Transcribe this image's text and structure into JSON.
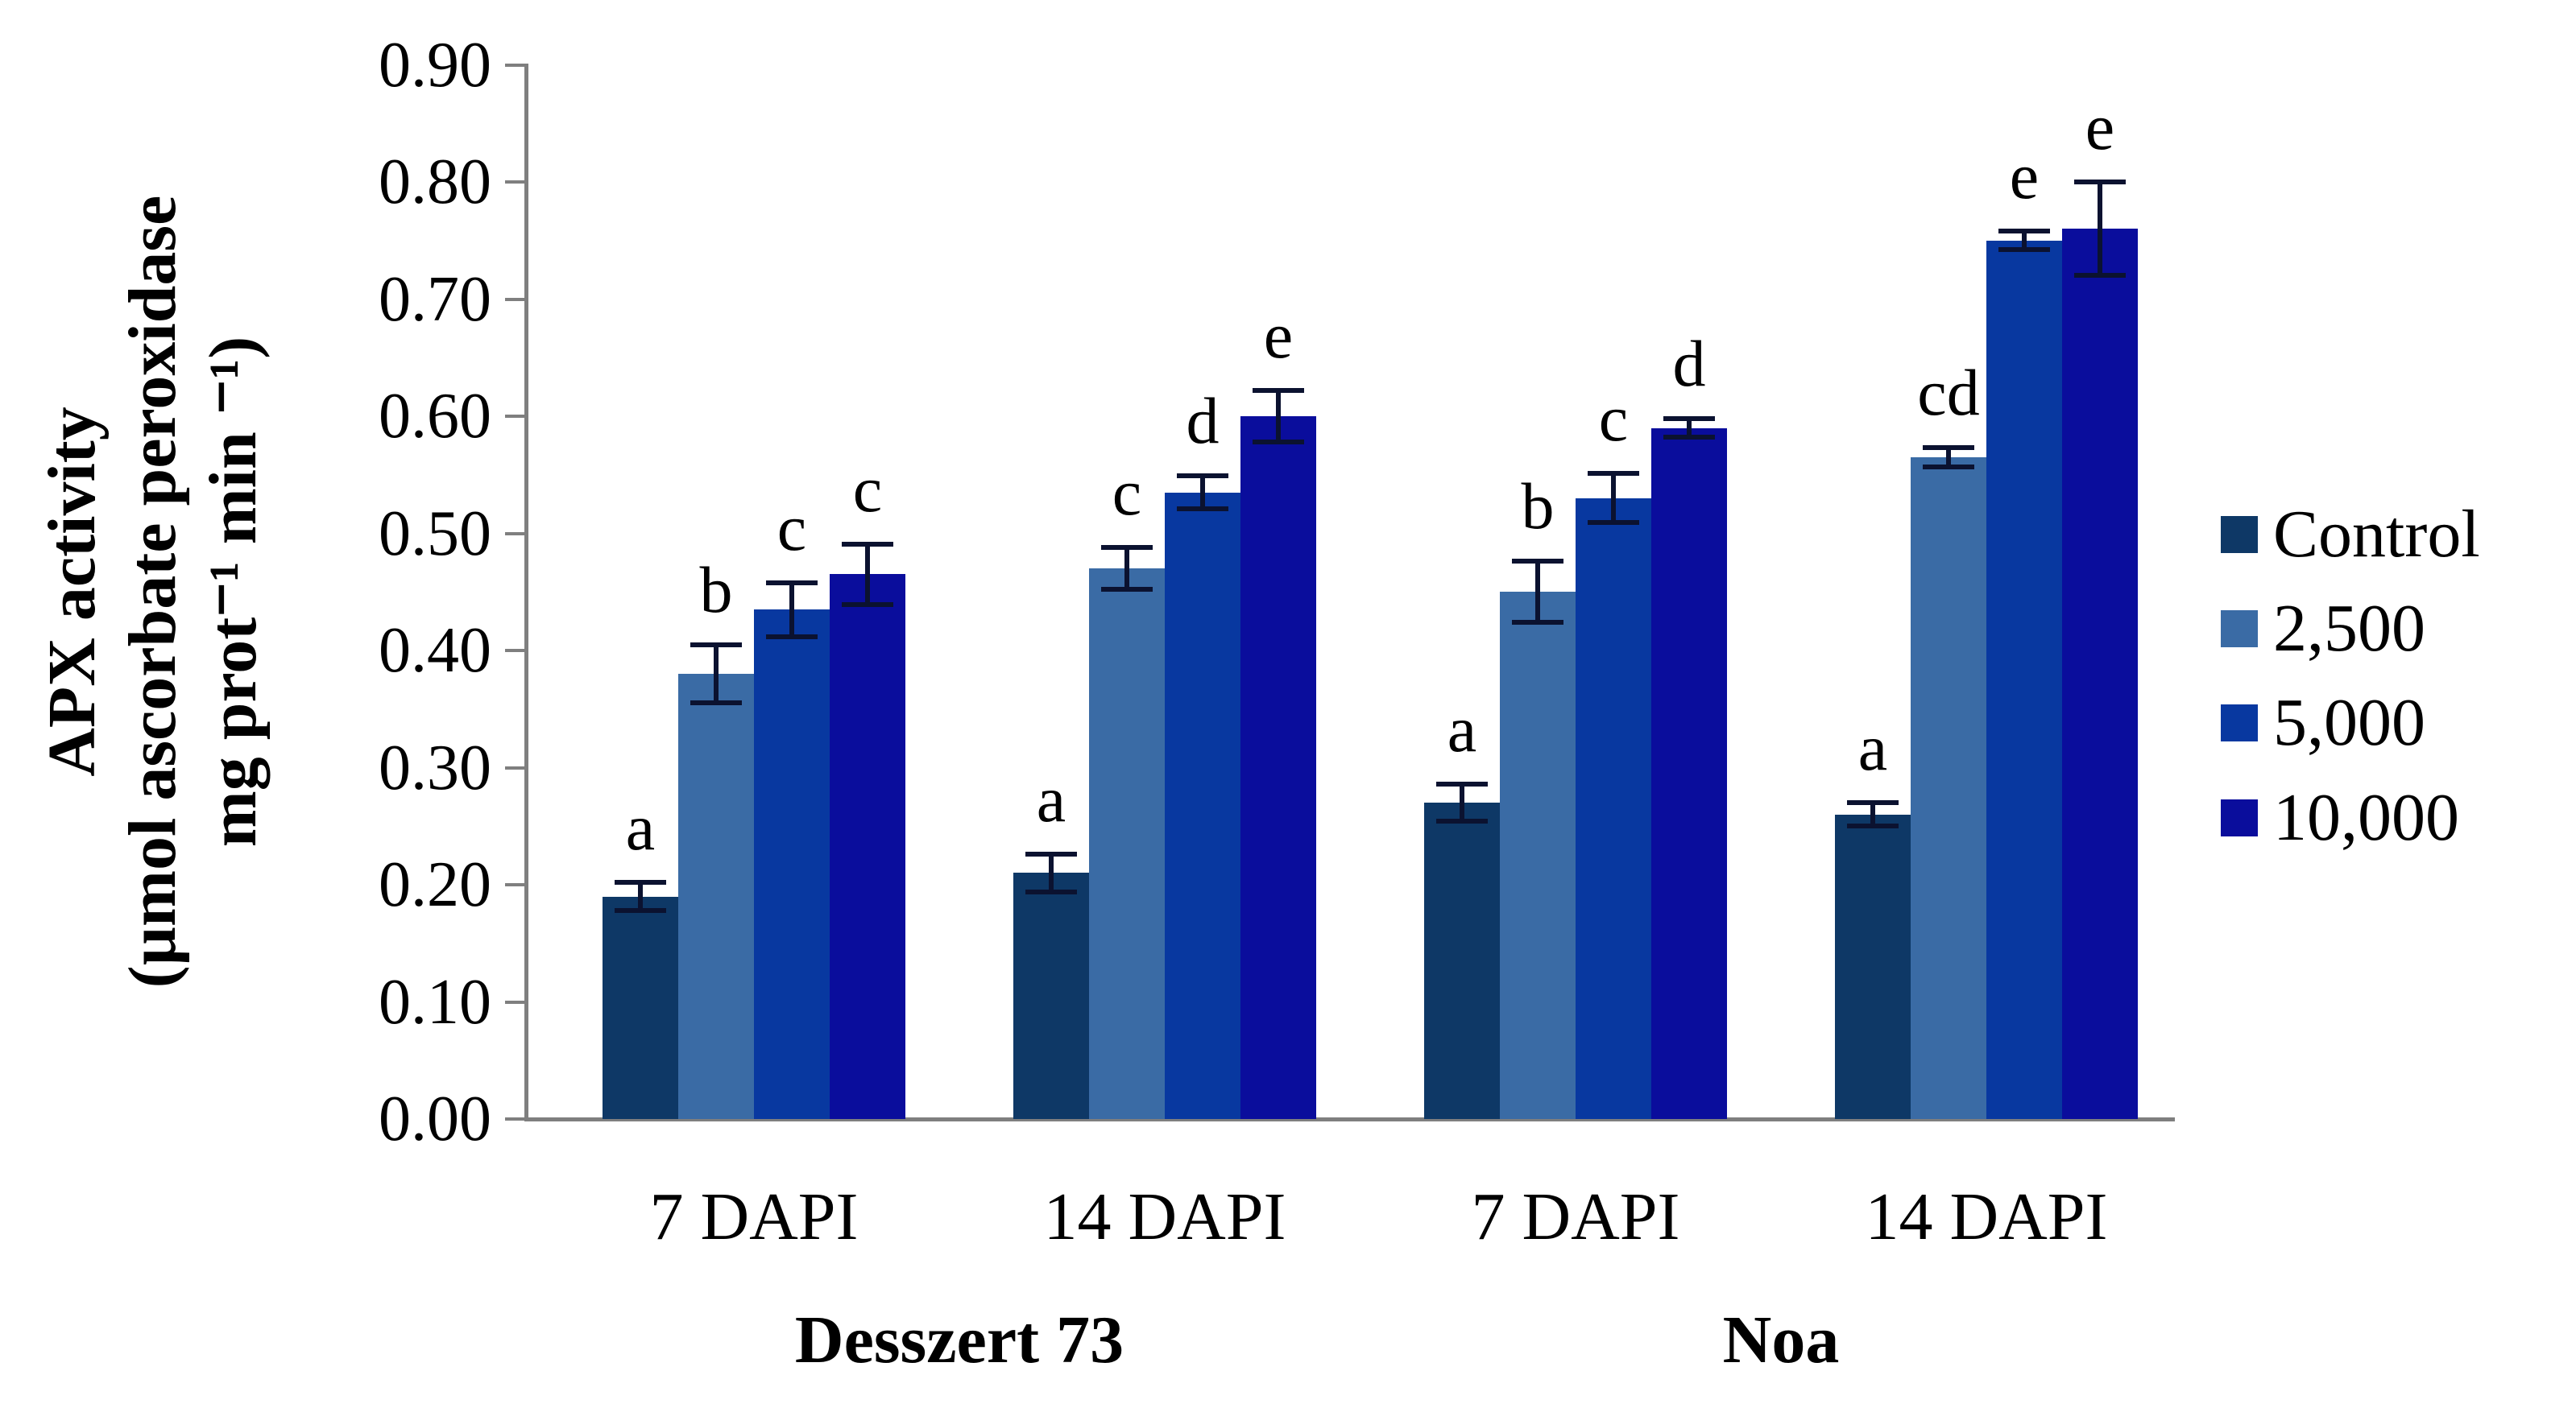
{
  "chart_data": {
    "type": "bar",
    "title": "",
    "ylabel_lines": [
      "APX activity",
      "(µmol ascorbate peroxidase",
      "mg prot⁻¹ min ⁻¹)"
    ],
    "ylim": [
      0.0,
      0.9
    ],
    "ytick_step": 0.1,
    "ytick_labels": [
      "0.00",
      "0.10",
      "0.20",
      "0.30",
      "0.40",
      "0.50",
      "0.60",
      "0.70",
      "0.80",
      "0.90"
    ],
    "grid": false,
    "categories": [
      "7 DAPI",
      "14 DAPI",
      "7 DAPI",
      "14 DAPI"
    ],
    "category_groups": [
      {
        "label": "Desszert 73",
        "spans": [
          0,
          1
        ]
      },
      {
        "label": "Noa",
        "spans": [
          2,
          3
        ]
      }
    ],
    "series": [
      {
        "name": "Control",
        "color": "#0e3866",
        "values": [
          0.19,
          0.21,
          0.27,
          0.26
        ],
        "errors": [
          0.012,
          0.016,
          0.016,
          0.01
        ],
        "letters": [
          "a",
          "a",
          "a",
          "a"
        ]
      },
      {
        "name": "2,500",
        "color": "#3a6ba5",
        "values": [
          0.38,
          0.47,
          0.45,
          0.565
        ],
        "errors": [
          0.025,
          0.018,
          0.026,
          0.008
        ],
        "letters": [
          "b",
          "c",
          "b",
          "cd"
        ]
      },
      {
        "name": "5,000",
        "color": "#0838a0",
        "values": [
          0.435,
          0.535,
          0.53,
          0.75
        ],
        "errors": [
          0.023,
          0.014,
          0.021,
          0.008
        ],
        "letters": [
          "c",
          "d",
          "c",
          "e"
        ]
      },
      {
        "name": "10,000",
        "color": "#0a0d9c",
        "values": [
          0.465,
          0.6,
          0.59,
          0.76
        ],
        "errors": [
          0.026,
          0.022,
          0.008,
          0.04
        ],
        "letters": [
          "c",
          "e",
          "d",
          "e"
        ]
      }
    ],
    "legend": {
      "position": "right",
      "entries": [
        "Control",
        "2,500",
        "5,000",
        "10,000"
      ]
    },
    "axis_color": "#7f7f7f",
    "error_bar_color": "#0b1230",
    "text_color": "#000000",
    "background": "#ffffff"
  }
}
